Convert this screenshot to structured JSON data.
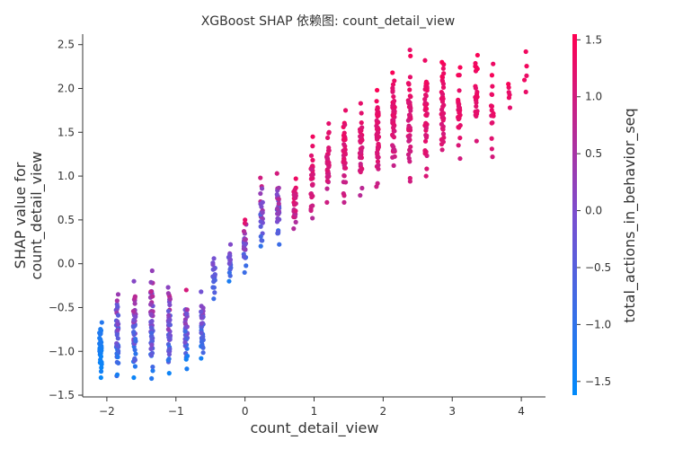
{
  "chart_data": {
    "type": "scatter",
    "title": "XGBoost SHAP 依赖图: count_detail_view",
    "xlabel": "count_detail_view",
    "ylabel_lines": [
      "SHAP value for",
      "count_detail_view"
    ],
    "xlim": [
      -2.35,
      4.35
    ],
    "ylim": [
      -1.52,
      2.62
    ],
    "x_ticks": [
      -2,
      -1,
      0,
      1,
      2,
      3,
      4
    ],
    "x_tick_labels": [
      "−2",
      "−1",
      "0",
      "1",
      "2",
      "3",
      "4"
    ],
    "y_ticks": [
      -1.5,
      -1.0,
      -0.5,
      0.0,
      0.5,
      1.0,
      1.5,
      2.0,
      2.5
    ],
    "y_tick_labels": [
      "−1.5",
      "−1.0",
      "−0.5",
      "0.0",
      "0.5",
      "1.0",
      "1.5",
      "2.0",
      "2.5"
    ],
    "grid": false,
    "colorbar": {
      "label": "total_actions_in_behavior_seq",
      "range": [
        -1.62,
        1.55
      ],
      "ticks": [
        -1.5,
        -1.0,
        -0.5,
        0.0,
        0.5,
        1.0,
        1.5
      ],
      "tick_labels": [
        "−1.5",
        "−1.0",
        "−0.5",
        "0.0",
        "0.5",
        "1.0",
        "1.5"
      ],
      "color_low": "#008afb",
      "color_mid": "#7a4ed0",
      "color_high": "#ff0052"
    },
    "columns": [
      {
        "x": -2.09,
        "y_min": -1.3,
        "y_max": -0.67,
        "c_min": -1.6,
        "c_max": -1.1,
        "n": 40
      },
      {
        "x": -1.85,
        "y_min": -1.28,
        "y_max": -0.35,
        "c_min": -1.6,
        "c_max": 0.8,
        "n": 42
      },
      {
        "x": -1.6,
        "y_min": -1.3,
        "y_max": -0.2,
        "c_min": -1.6,
        "c_max": 1.2,
        "n": 48
      },
      {
        "x": -1.35,
        "y_min": -1.31,
        "y_max": -0.08,
        "c_min": -1.6,
        "c_max": 1.3,
        "n": 50
      },
      {
        "x": -1.1,
        "y_min": -1.25,
        "y_max": -0.27,
        "c_min": -1.6,
        "c_max": 1.2,
        "n": 44
      },
      {
        "x": -0.85,
        "y_min": -1.2,
        "y_max": -0.3,
        "c_min": -1.6,
        "c_max": 1.2,
        "n": 40
      },
      {
        "x": -0.62,
        "y_min": -1.08,
        "y_max": -0.32,
        "c_min": -1.6,
        "c_max": 0.8,
        "n": 34
      },
      {
        "x": -0.45,
        "y_min": -0.4,
        "y_max": 0.06,
        "c_min": -1.2,
        "c_max": 0.2,
        "n": 18
      },
      {
        "x": -0.22,
        "y_min": -0.2,
        "y_max": 0.22,
        "c_min": -1.3,
        "c_max": 0.5,
        "n": 18
      },
      {
        "x": 0.0,
        "y_min": -0.1,
        "y_max": 0.5,
        "c_min": -1.5,
        "c_max": 1.4,
        "n": 28
      },
      {
        "x": 0.24,
        "y_min": 0.2,
        "y_max": 0.98,
        "c_min": -1.4,
        "c_max": 1.4,
        "n": 26
      },
      {
        "x": 0.48,
        "y_min": 0.22,
        "y_max": 1.03,
        "c_min": -1.3,
        "c_max": 1.4,
        "n": 30
      },
      {
        "x": 0.72,
        "y_min": 0.4,
        "y_max": 0.97,
        "c_min": 0.5,
        "c_max": 1.5,
        "n": 28
      },
      {
        "x": 0.97,
        "y_min": 0.52,
        "y_max": 1.45,
        "c_min": 0.6,
        "c_max": 1.5,
        "n": 32
      },
      {
        "x": 1.2,
        "y_min": 0.7,
        "y_max": 1.6,
        "c_min": 0.7,
        "c_max": 1.5,
        "n": 36
      },
      {
        "x": 1.44,
        "y_min": 0.7,
        "y_max": 1.75,
        "c_min": 0.7,
        "c_max": 1.5,
        "n": 38
      },
      {
        "x": 1.68,
        "y_min": 0.78,
        "y_max": 1.83,
        "c_min": 0.7,
        "c_max": 1.5,
        "n": 40
      },
      {
        "x": 1.92,
        "y_min": 0.88,
        "y_max": 1.98,
        "c_min": 0.8,
        "c_max": 1.5,
        "n": 44
      },
      {
        "x": 2.15,
        "y_min": 1.12,
        "y_max": 2.18,
        "c_min": 0.8,
        "c_max": 1.5,
        "n": 46
      },
      {
        "x": 2.38,
        "y_min": 0.94,
        "y_max": 2.44,
        "c_min": 0.8,
        "c_max": 1.5,
        "n": 48
      },
      {
        "x": 2.62,
        "y_min": 1.0,
        "y_max": 2.32,
        "c_min": 0.9,
        "c_max": 1.5,
        "n": 44
      },
      {
        "x": 2.86,
        "y_min": 1.3,
        "y_max": 2.3,
        "c_min": 0.9,
        "c_max": 1.5,
        "n": 36
      },
      {
        "x": 3.1,
        "y_min": 1.2,
        "y_max": 2.24,
        "c_min": 1.0,
        "c_max": 1.5,
        "n": 28
      },
      {
        "x": 3.35,
        "y_min": 1.4,
        "y_max": 2.38,
        "c_min": 1.0,
        "c_max": 1.5,
        "n": 22
      },
      {
        "x": 3.58,
        "y_min": 1.22,
        "y_max": 2.28,
        "c_min": 1.0,
        "c_max": 1.5,
        "n": 16
      },
      {
        "x": 3.82,
        "y_min": 1.78,
        "y_max": 2.05,
        "c_min": 1.1,
        "c_max": 1.5,
        "n": 6
      },
      {
        "x": 4.06,
        "y_min": 1.96,
        "y_max": 2.42,
        "c_min": 1.2,
        "c_max": 1.5,
        "n": 5
      }
    ]
  }
}
